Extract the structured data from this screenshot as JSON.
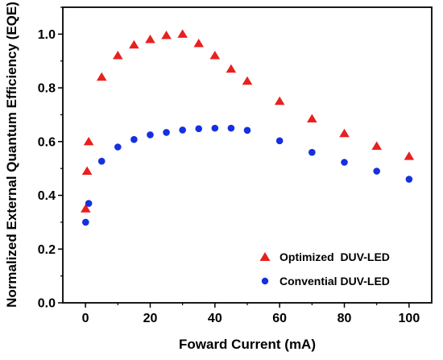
{
  "chart_data": {
    "type": "scatter",
    "xlabel": "Foward Current (mA)",
    "ylabel": "Normalized External Quantum Efficiency (EQE)",
    "xlim": [
      -7,
      107
    ],
    "ylim": [
      0.0,
      1.1
    ],
    "xticks": [
      0,
      20,
      40,
      60,
      80,
      100
    ],
    "yticks": [
      "0.0",
      "0.2",
      "0.4",
      "0.6",
      "0.8",
      "1.0"
    ],
    "legend_position": "bottom-right",
    "grid": false,
    "series": [
      {
        "name": "Optimized  DUV-LED",
        "marker": "triangle",
        "color": "#e8201e",
        "points": [
          [
            0.05,
            0.35
          ],
          [
            0.5,
            0.49
          ],
          [
            1,
            0.6
          ],
          [
            5,
            0.84
          ],
          [
            10,
            0.92
          ],
          [
            15,
            0.96
          ],
          [
            20,
            0.98
          ],
          [
            25,
            0.995
          ],
          [
            30,
            1.0
          ],
          [
            35,
            0.965
          ],
          [
            40,
            0.92
          ],
          [
            45,
            0.87
          ],
          [
            50,
            0.825
          ],
          [
            60,
            0.75
          ],
          [
            70,
            0.685
          ],
          [
            80,
            0.63
          ],
          [
            90,
            0.583
          ],
          [
            100,
            0.545
          ]
        ]
      },
      {
        "name": "Convential DUV-LED",
        "marker": "circle",
        "color": "#1530e0",
        "points": [
          [
            0.05,
            0.3
          ],
          [
            1,
            0.37
          ],
          [
            5,
            0.527
          ],
          [
            10,
            0.58
          ],
          [
            15,
            0.608
          ],
          [
            20,
            0.625
          ],
          [
            25,
            0.634
          ],
          [
            30,
            0.643
          ],
          [
            35,
            0.648
          ],
          [
            40,
            0.65
          ],
          [
            45,
            0.65
          ],
          [
            50,
            0.642
          ],
          [
            60,
            0.603
          ],
          [
            70,
            0.56
          ],
          [
            80,
            0.523
          ],
          [
            90,
            0.49
          ],
          [
            100,
            0.46
          ]
        ]
      }
    ]
  }
}
